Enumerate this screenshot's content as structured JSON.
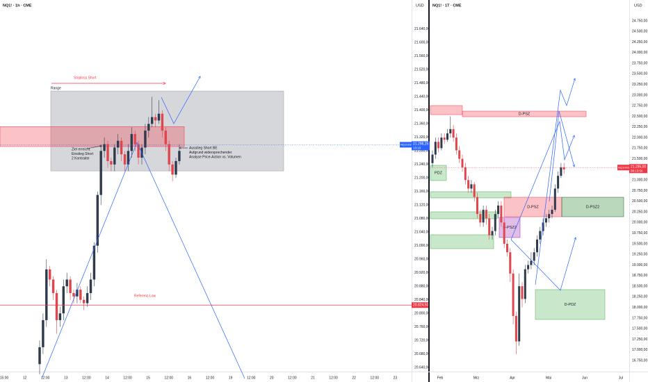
{
  "chart_data": [
    {
      "type": "candlestick",
      "symbol": "NQ1! · 1h · CME",
      "currency": "USD",
      "up_color": "#2f3b4c",
      "down_color": "#e0464e",
      "ylim": [
        20628,
        21726
      ],
      "yticks": [
        {
          "value": 20640,
          "label": "20.640,00"
        },
        {
          "value": 20680,
          "label": "20.680,00"
        },
        {
          "value": 20720,
          "label": "20.720,00"
        },
        {
          "value": 20760,
          "label": "20.760,00"
        },
        {
          "value": 20800,
          "label": "20.800,00"
        },
        {
          "value": 20840,
          "label": "20.840,00"
        },
        {
          "value": 20880,
          "label": "20.880,00"
        },
        {
          "value": 20920,
          "label": "20.920,00"
        },
        {
          "value": 20960,
          "label": "20.960,00"
        },
        {
          "value": 21000,
          "label": "21.000,00"
        },
        {
          "value": 21040,
          "label": "21.040,00"
        },
        {
          "value": 21080,
          "label": "21.080,00"
        },
        {
          "value": 21120,
          "label": "21.120,00"
        },
        {
          "value": 21160,
          "label": "21.160,00"
        },
        {
          "value": 21200,
          "label": "21.200,00"
        },
        {
          "value": 21240,
          "label": "21.240,00"
        },
        {
          "value": 21280,
          "label": "21.280,00"
        },
        {
          "value": 21320,
          "label": "21.320,00"
        },
        {
          "value": 21360,
          "label": "21.360,00"
        },
        {
          "value": 21400,
          "label": "21.400,00"
        },
        {
          "value": 21440,
          "label": "21.440,00"
        },
        {
          "value": 21480,
          "label": "21.480,00"
        },
        {
          "value": 21520,
          "label": "21.520,00"
        },
        {
          "value": 21560,
          "label": "21.560,00"
        },
        {
          "value": 21600,
          "label": "21.600,00"
        },
        {
          "value": 21640,
          "label": "21.640,00"
        }
      ],
      "x_labels": [
        "15:00",
        "12",
        "12:00",
        "13",
        "12:00",
        "14",
        "12:00",
        "15",
        "12:00",
        "16",
        "12:00",
        "19",
        "12:00",
        "20",
        "12:00",
        "21",
        "12:00",
        "22",
        "12:00",
        "23"
      ],
      "open": [
        20650,
        20700,
        20780,
        20930,
        20900,
        20860,
        20780,
        20800,
        20880,
        20900,
        20860,
        20850,
        20870,
        20840,
        20830,
        20860,
        20900,
        21000,
        21150,
        21280,
        21300,
        21250,
        21240,
        21290,
        21310,
        21270,
        21240,
        21280,
        21330,
        21300,
        21260,
        21290,
        21340,
        21360,
        21380,
        21370,
        21390,
        21340,
        21300,
        21240,
        21210,
        21250
      ],
      "high": [
        20720,
        20800,
        20960,
        20940,
        20910,
        20870,
        20820,
        20900,
        20920,
        20910,
        20870,
        20890,
        20880,
        20850,
        20880,
        20920,
        21010,
        21160,
        21300,
        21320,
        21310,
        21260,
        21300,
        21330,
        21320,
        21280,
        21300,
        21350,
        21340,
        21310,
        21300,
        21360,
        21380,
        21440,
        21390,
        21430,
        21400,
        21350,
        21310,
        21250,
        21260,
        21300
      ],
      "low": [
        20620,
        20680,
        20760,
        20880,
        20840,
        20740,
        20760,
        20780,
        20860,
        20840,
        20830,
        20830,
        20830,
        20810,
        20820,
        20840,
        20880,
        20980,
        21120,
        21260,
        21230,
        21220,
        21220,
        21270,
        21250,
        21220,
        21220,
        21260,
        21280,
        21240,
        21240,
        21270,
        21320,
        21350,
        21350,
        21360,
        21320,
        21280,
        21220,
        21190,
        21200,
        21240
      ],
      "close": [
        20700,
        20780,
        20930,
        20900,
        20860,
        20780,
        20800,
        20880,
        20900,
        20860,
        20850,
        20870,
        20840,
        20830,
        20860,
        20900,
        21000,
        21150,
        21280,
        21300,
        21250,
        21240,
        21290,
        21310,
        21270,
        21240,
        21280,
        21330,
        21300,
        21260,
        21290,
        21340,
        21360,
        21380,
        21370,
        21390,
        21340,
        21300,
        21240,
        21210,
        21250,
        21280
      ],
      "zones": [
        {
          "low": 21221,
          "high": 21457,
          "color": "rgba(120,123,134,0.3)",
          "stroke": "#9598a1"
        },
        {
          "low": 21293,
          "high": 21352,
          "color": "rgba(242,54,69,0.3)",
          "stroke": "#f23645"
        }
      ],
      "hlines": [
        {
          "value": 20824.5,
          "label": "20.824,50",
          "color": "#f23645"
        }
      ],
      "last_price": {
        "value": 21298.25,
        "label": "21.298,25",
        "countdown": "13:10",
        "symbol": "NQ1!2025",
        "color": "#2962ff"
      },
      "annotations": [
        {
          "lines": [
            "Stoploss Short"
          ],
          "color": "#f23645"
        },
        {
          "lines": [
            "Range"
          ],
          "color": "#131722"
        },
        {
          "lines": [
            "Ziel erreicht.",
            "Einstieg Short",
            "2 Kontrakte"
          ],
          "color": "#131722"
        },
        {
          "lines": [
            "Ausstieg Short BE",
            "Aufgrund widersprechender",
            "Analyse Price-Action vs. Volumen"
          ],
          "color": "#131722"
        },
        {
          "lines": [
            "Referenz-Low"
          ],
          "color": "#f23645"
        }
      ]
    },
    {
      "type": "candlestick",
      "symbol": "NQ1! · 1T · CME",
      "currency": "USD",
      "up_color": "#2f3b4c",
      "down_color": "#e0464e",
      "ylim": [
        16490,
        25240
      ],
      "yticks": [
        {
          "value": 16750,
          "label": "16.750,00"
        },
        {
          "value": 17000,
          "label": "17.000,00"
        },
        {
          "value": 17250,
          "label": "17.250,00"
        },
        {
          "value": 17500,
          "label": "17.500,00"
        },
        {
          "value": 17750,
          "label": "17.750,00"
        },
        {
          "value": 18000,
          "label": "18.000,00"
        },
        {
          "value": 18250,
          "label": "18.250,00"
        },
        {
          "value": 18500,
          "label": "18.500,00"
        },
        {
          "value": 18750,
          "label": "18.750,00"
        },
        {
          "value": 19000,
          "label": "19.000,00"
        },
        {
          "value": 19250,
          "label": "19.250,00"
        },
        {
          "value": 19500,
          "label": "19.500,00"
        },
        {
          "value": 19750,
          "label": "19.750,00"
        },
        {
          "value": 20000,
          "label": "20.000,00"
        },
        {
          "value": 20250,
          "label": "20.250,00"
        },
        {
          "value": 20500,
          "label": "20.500,00"
        },
        {
          "value": 20750,
          "label": "20.750,00"
        },
        {
          "value": 21000,
          "label": "21.000,00"
        },
        {
          "value": 21250,
          "label": "21.250,00"
        },
        {
          "value": 21500,
          "label": "21.500,00"
        },
        {
          "value": 21750,
          "label": "21.750,00"
        },
        {
          "value": 22000,
          "label": "22.000,00"
        },
        {
          "value": 22250,
          "label": "22.250,00"
        },
        {
          "value": 22500,
          "label": "22.500,00"
        },
        {
          "value": 22750,
          "label": "22.750,00"
        },
        {
          "value": 23000,
          "label": "23.000,00"
        },
        {
          "value": 23250,
          "label": "23.250,00"
        },
        {
          "value": 23500,
          "label": "23.500,00"
        },
        {
          "value": 23750,
          "label": "23.750,00"
        },
        {
          "value": 24000,
          "label": "24.000,00"
        },
        {
          "value": 24250,
          "label": "24.250,00"
        },
        {
          "value": 24500,
          "label": "24.500,00"
        },
        {
          "value": 24750,
          "label": "24.750,00"
        }
      ],
      "x_labels": [
        "Feb",
        "Mrz",
        "Apr",
        "Mai",
        "Jun",
        "Jul"
      ],
      "open": [
        21400,
        21600,
        21900,
        21750,
        22000,
        21950,
        22100,
        22200,
        22000,
        21700,
        21500,
        21300,
        21000,
        20800,
        20900,
        20600,
        20200,
        20000,
        20300,
        20100,
        19700,
        19800,
        20200,
        20400,
        20000,
        19500,
        19300,
        18800,
        17800,
        17200,
        18500,
        18200,
        18900,
        19000,
        19100,
        19300,
        19600,
        19800,
        20000,
        20100,
        20200,
        20300,
        20800,
        21100,
        21300
      ],
      "high": [
        21700,
        22000,
        22000,
        22100,
        22100,
        22200,
        22500,
        22300,
        22100,
        21800,
        21600,
        21400,
        21100,
        21000,
        20950,
        20700,
        20300,
        20400,
        20400,
        20200,
        19900,
        20300,
        20500,
        20500,
        20100,
        19600,
        19400,
        18900,
        17900,
        18800,
        18600,
        19000,
        19100,
        19300,
        19400,
        19700,
        19900,
        20100,
        20200,
        20300,
        20400,
        20900,
        21200,
        21400,
        21400
      ],
      "low": [
        21300,
        21500,
        21650,
        21700,
        21850,
        21900,
        22000,
        21900,
        21600,
        21400,
        21200,
        20900,
        20700,
        20700,
        20500,
        20100,
        19900,
        19900,
        19950,
        19600,
        19600,
        19700,
        20100,
        19900,
        19400,
        19200,
        18600,
        17600,
        16900,
        17100,
        18000,
        18100,
        18800,
        18900,
        19000,
        19200,
        19500,
        19700,
        19900,
        20000,
        20100,
        20250,
        20700,
        21050,
        21150
      ],
      "close": [
        21600,
        21900,
        21750,
        22000,
        21950,
        22100,
        22200,
        22000,
        21700,
        21500,
        21300,
        21000,
        20800,
        20900,
        20600,
        20200,
        20000,
        20300,
        20100,
        19700,
        19800,
        20200,
        20400,
        20000,
        19500,
        19300,
        18800,
        17800,
        17200,
        18500,
        18200,
        18900,
        19000,
        19100,
        19300,
        19600,
        19800,
        20000,
        20100,
        20200,
        20300,
        20800,
        21100,
        21300,
        21250
      ],
      "zones": [
        {
          "low": 22541,
          "high": 22754,
          "color": "rgba(242,54,69,0.3)",
          "stroke": "#f23645"
        },
        {
          "low": 22492,
          "high": 22623,
          "label": "D-PSZ",
          "color": "rgba(242,54,69,0.3)",
          "stroke": "#f23645"
        },
        {
          "low": 20988,
          "high": 21347,
          "label": "PDZ",
          "color": "rgba(76,175,80,0.3)",
          "stroke": "#4caf50"
        },
        {
          "low": 20579,
          "high": 20726,
          "color": "rgba(76,175,80,0.3)",
          "stroke": "#4caf50"
        },
        {
          "low": 20088,
          "high": 20252,
          "color": "rgba(76,175,80,0.3)",
          "stroke": "#4caf50"
        },
        {
          "low": 19385,
          "high": 19712,
          "color": "rgba(76,175,80,0.3)",
          "stroke": "#4caf50"
        },
        {
          "low": 20137,
          "high": 20595,
          "label": "D-PSZ",
          "color": "rgba(242,54,69,0.3)",
          "stroke": "#f23645"
        },
        {
          "low": 20137,
          "high": 20595,
          "label": "D-PSZ2",
          "color": "rgba(56,142,60,0.35)",
          "stroke": "#1b5e20"
        },
        {
          "low": 19647,
          "high": 20121,
          "label": "D-PSZ2",
          "color": "rgba(156,39,176,0.3)",
          "stroke": "#9c27b0"
        },
        {
          "low": 17717,
          "high": 18420,
          "label": "D-PDZ",
          "color": "rgba(76,175,80,0.3)",
          "stroke": "#4caf50"
        }
      ],
      "hlines": [],
      "last_price": {
        "value": 21295,
        "label": "21.295,00",
        "countdown": "08:13:56",
        "symbol": "NQ1!2025",
        "color": "#f23645"
      },
      "annotations": []
    }
  ]
}
